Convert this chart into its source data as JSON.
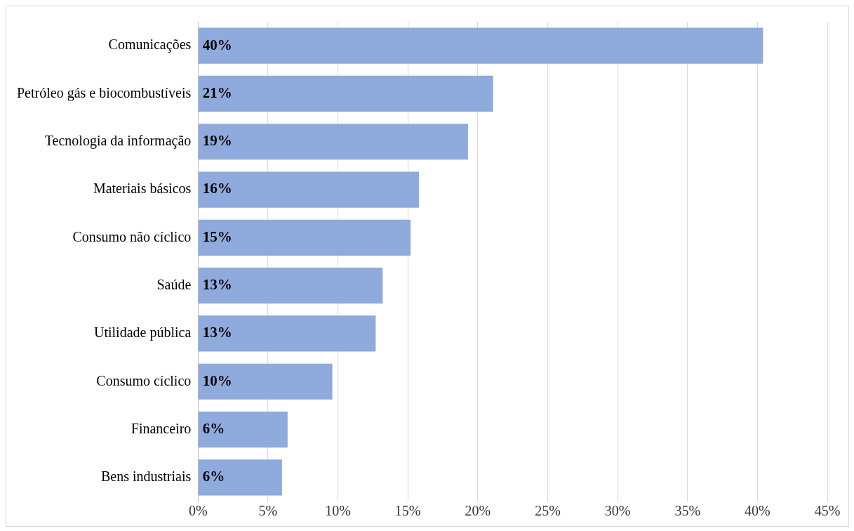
{
  "chart_data": {
    "type": "bar",
    "orientation": "horizontal",
    "categories": [
      "Comunicações",
      "Petróleo gás e biocombustíveis",
      "Tecnologia da informação",
      "Materiais básicos",
      "Consumo não cíclico",
      "Saúde",
      "Utilidade pública",
      "Consumo cíclico",
      "Financeiro",
      "Bens industriais"
    ],
    "values": [
      40.4,
      21.1,
      19.3,
      15.8,
      15.2,
      13.2,
      12.7,
      9.6,
      6.4,
      6.0
    ],
    "value_labels": [
      "40%",
      "21%",
      "19%",
      "16%",
      "15%",
      "13%",
      "13%",
      "10%",
      "6%",
      "6%"
    ],
    "color": "#8faadc",
    "xlim": [
      0,
      45
    ],
    "xticks": [
      {
        "value": 0,
        "label": "0%"
      },
      {
        "value": 5,
        "label": "5%"
      },
      {
        "value": 10,
        "label": "10%"
      },
      {
        "value": 15,
        "label": "15%"
      },
      {
        "value": 20,
        "label": "20%"
      },
      {
        "value": 25,
        "label": "25%"
      },
      {
        "value": 30,
        "label": "30%"
      },
      {
        "value": 35,
        "label": "35%"
      },
      {
        "value": 40,
        "label": "40%"
      },
      {
        "value": 45,
        "label": "45%"
      }
    ],
    "grid": "x"
  }
}
